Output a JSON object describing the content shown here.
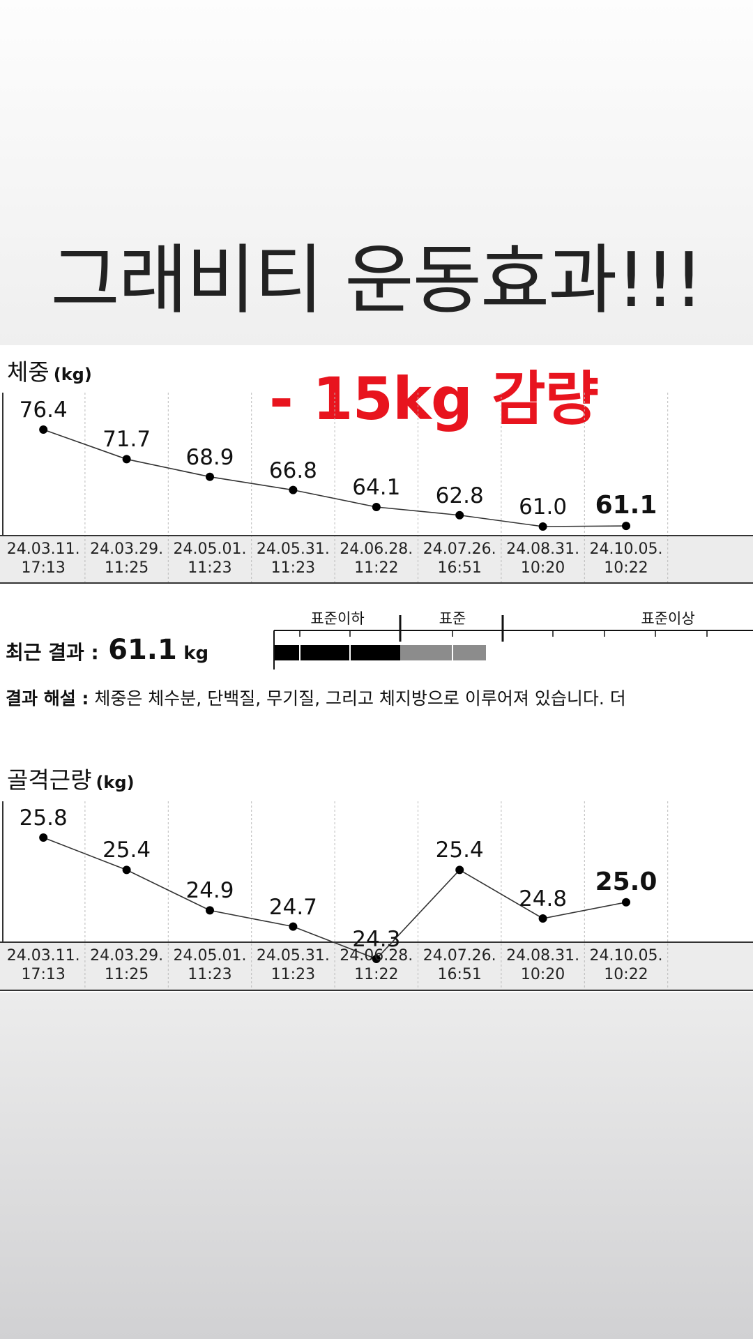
{
  "headline": "그래비티 운동효과!!!",
  "chart_data": [
    {
      "type": "line",
      "title": "체중",
      "unit": "(kg)",
      "annotation": "- 15kg 감량",
      "categories": [
        "24.03.11.\n17:13",
        "24.03.29.\n11:25",
        "24.05.01.\n11:23",
        "24.05.31.\n11:23",
        "24.06.28.\n11:22",
        "24.07.26.\n16:51",
        "24.08.31.\n10:20",
        "24.10.05.\n10:22"
      ],
      "values": [
        76.4,
        71.7,
        68.9,
        66.8,
        64.1,
        62.8,
        61.0,
        61.1
      ],
      "value_labels": [
        "76.4",
        "71.7",
        "68.9",
        "66.8",
        "64.1",
        "62.8",
        "61.0",
        "61.1"
      ]
    },
    {
      "type": "line",
      "title": "골격근량",
      "unit": "(kg)",
      "categories": [
        "24.03.11.\n17:13",
        "24.03.29.\n11:25",
        "24.05.01.\n11:23",
        "24.05.31.\n11:23",
        "24.06.28.\n11:22",
        "24.07.26.\n16:51",
        "24.08.31.\n10:20",
        "24.10.05.\n10:22"
      ],
      "values": [
        25.8,
        25.4,
        24.9,
        24.7,
        24.3,
        25.4,
        24.8,
        25.0
      ],
      "value_labels": [
        "25.8",
        "25.4",
        "24.9",
        "24.7",
        "24.3",
        "25.4",
        "24.8",
        "25.0"
      ]
    }
  ],
  "result": {
    "label": "최근 결과 :",
    "value": "61.1",
    "unit": "kg",
    "scale": [
      "표준이하",
      "표준",
      "표준이상"
    ],
    "note_label": "결과 해설 :",
    "note": "체중은 체수분, 단백질, 무기질, 그리고 체지방으로 이루어져 있습니다. 더"
  }
}
